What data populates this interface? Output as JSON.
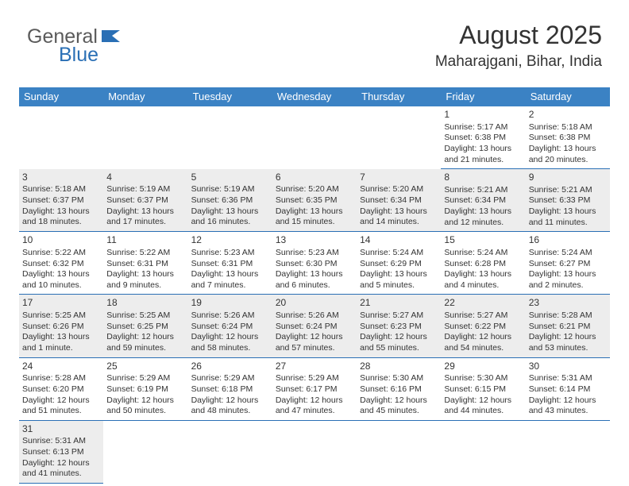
{
  "logo": {
    "part1": "General",
    "part2": "Blue"
  },
  "header": {
    "month_title": "August 2025",
    "location": "Maharajgani, Bihar, India"
  },
  "colors": {
    "header_bg": "#3b82c4",
    "border": "#2a6fb5",
    "shade": "#ededed",
    "text": "#333333"
  },
  "day_headers": [
    "Sunday",
    "Monday",
    "Tuesday",
    "Wednesday",
    "Thursday",
    "Friday",
    "Saturday"
  ],
  "weeks": [
    [
      null,
      null,
      null,
      null,
      null,
      {
        "n": "1",
        "sr": "Sunrise: 5:17 AM",
        "ss": "Sunset: 6:38 PM",
        "dl": "Daylight: 13 hours and 21 minutes.",
        "shade": false
      },
      {
        "n": "2",
        "sr": "Sunrise: 5:18 AM",
        "ss": "Sunset: 6:38 PM",
        "dl": "Daylight: 13 hours and 20 minutes.",
        "shade": false
      }
    ],
    [
      {
        "n": "3",
        "sr": "Sunrise: 5:18 AM",
        "ss": "Sunset: 6:37 PM",
        "dl": "Daylight: 13 hours and 18 minutes.",
        "shade": true
      },
      {
        "n": "4",
        "sr": "Sunrise: 5:19 AM",
        "ss": "Sunset: 6:37 PM",
        "dl": "Daylight: 13 hours and 17 minutes.",
        "shade": true
      },
      {
        "n": "5",
        "sr": "Sunrise: 5:19 AM",
        "ss": "Sunset: 6:36 PM",
        "dl": "Daylight: 13 hours and 16 minutes.",
        "shade": true
      },
      {
        "n": "6",
        "sr": "Sunrise: 5:20 AM",
        "ss": "Sunset: 6:35 PM",
        "dl": "Daylight: 13 hours and 15 minutes.",
        "shade": true
      },
      {
        "n": "7",
        "sr": "Sunrise: 5:20 AM",
        "ss": "Sunset: 6:34 PM",
        "dl": "Daylight: 13 hours and 14 minutes.",
        "shade": true
      },
      {
        "n": "8",
        "sr": "Sunrise: 5:21 AM",
        "ss": "Sunset: 6:34 PM",
        "dl": "Daylight: 13 hours and 12 minutes.",
        "shade": true
      },
      {
        "n": "9",
        "sr": "Sunrise: 5:21 AM",
        "ss": "Sunset: 6:33 PM",
        "dl": "Daylight: 13 hours and 11 minutes.",
        "shade": true
      }
    ],
    [
      {
        "n": "10",
        "sr": "Sunrise: 5:22 AM",
        "ss": "Sunset: 6:32 PM",
        "dl": "Daylight: 13 hours and 10 minutes.",
        "shade": false
      },
      {
        "n": "11",
        "sr": "Sunrise: 5:22 AM",
        "ss": "Sunset: 6:31 PM",
        "dl": "Daylight: 13 hours and 9 minutes.",
        "shade": false
      },
      {
        "n": "12",
        "sr": "Sunrise: 5:23 AM",
        "ss": "Sunset: 6:31 PM",
        "dl": "Daylight: 13 hours and 7 minutes.",
        "shade": false
      },
      {
        "n": "13",
        "sr": "Sunrise: 5:23 AM",
        "ss": "Sunset: 6:30 PM",
        "dl": "Daylight: 13 hours and 6 minutes.",
        "shade": false
      },
      {
        "n": "14",
        "sr": "Sunrise: 5:24 AM",
        "ss": "Sunset: 6:29 PM",
        "dl": "Daylight: 13 hours and 5 minutes.",
        "shade": false
      },
      {
        "n": "15",
        "sr": "Sunrise: 5:24 AM",
        "ss": "Sunset: 6:28 PM",
        "dl": "Daylight: 13 hours and 4 minutes.",
        "shade": false
      },
      {
        "n": "16",
        "sr": "Sunrise: 5:24 AM",
        "ss": "Sunset: 6:27 PM",
        "dl": "Daylight: 13 hours and 2 minutes.",
        "shade": false
      }
    ],
    [
      {
        "n": "17",
        "sr": "Sunrise: 5:25 AM",
        "ss": "Sunset: 6:26 PM",
        "dl": "Daylight: 13 hours and 1 minute.",
        "shade": true
      },
      {
        "n": "18",
        "sr": "Sunrise: 5:25 AM",
        "ss": "Sunset: 6:25 PM",
        "dl": "Daylight: 12 hours and 59 minutes.",
        "shade": true
      },
      {
        "n": "19",
        "sr": "Sunrise: 5:26 AM",
        "ss": "Sunset: 6:24 PM",
        "dl": "Daylight: 12 hours and 58 minutes.",
        "shade": true
      },
      {
        "n": "20",
        "sr": "Sunrise: 5:26 AM",
        "ss": "Sunset: 6:24 PM",
        "dl": "Daylight: 12 hours and 57 minutes.",
        "shade": true
      },
      {
        "n": "21",
        "sr": "Sunrise: 5:27 AM",
        "ss": "Sunset: 6:23 PM",
        "dl": "Daylight: 12 hours and 55 minutes.",
        "shade": true
      },
      {
        "n": "22",
        "sr": "Sunrise: 5:27 AM",
        "ss": "Sunset: 6:22 PM",
        "dl": "Daylight: 12 hours and 54 minutes.",
        "shade": true
      },
      {
        "n": "23",
        "sr": "Sunrise: 5:28 AM",
        "ss": "Sunset: 6:21 PM",
        "dl": "Daylight: 12 hours and 53 minutes.",
        "shade": true
      }
    ],
    [
      {
        "n": "24",
        "sr": "Sunrise: 5:28 AM",
        "ss": "Sunset: 6:20 PM",
        "dl": "Daylight: 12 hours and 51 minutes.",
        "shade": false
      },
      {
        "n": "25",
        "sr": "Sunrise: 5:29 AM",
        "ss": "Sunset: 6:19 PM",
        "dl": "Daylight: 12 hours and 50 minutes.",
        "shade": false
      },
      {
        "n": "26",
        "sr": "Sunrise: 5:29 AM",
        "ss": "Sunset: 6:18 PM",
        "dl": "Daylight: 12 hours and 48 minutes.",
        "shade": false
      },
      {
        "n": "27",
        "sr": "Sunrise: 5:29 AM",
        "ss": "Sunset: 6:17 PM",
        "dl": "Daylight: 12 hours and 47 minutes.",
        "shade": false
      },
      {
        "n": "28",
        "sr": "Sunrise: 5:30 AM",
        "ss": "Sunset: 6:16 PM",
        "dl": "Daylight: 12 hours and 45 minutes.",
        "shade": false
      },
      {
        "n": "29",
        "sr": "Sunrise: 5:30 AM",
        "ss": "Sunset: 6:15 PM",
        "dl": "Daylight: 12 hours and 44 minutes.",
        "shade": false
      },
      {
        "n": "30",
        "sr": "Sunrise: 5:31 AM",
        "ss": "Sunset: 6:14 PM",
        "dl": "Daylight: 12 hours and 43 minutes.",
        "shade": false
      }
    ],
    [
      {
        "n": "31",
        "sr": "Sunrise: 5:31 AM",
        "ss": "Sunset: 6:13 PM",
        "dl": "Daylight: 12 hours and 41 minutes.",
        "shade": true
      },
      null,
      null,
      null,
      null,
      null,
      null
    ]
  ]
}
